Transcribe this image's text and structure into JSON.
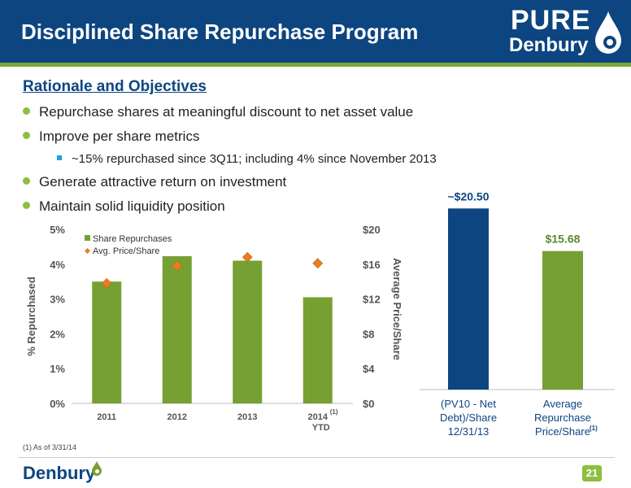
{
  "header": {
    "title": "Disciplined Share Repurchase Program",
    "logo_top": "PURE",
    "logo_bottom": "Denbury",
    "bar_color": "#0d4580",
    "accent_color": "#7aa83a"
  },
  "rationale": {
    "heading": "Rationale and Objectives",
    "bullets": [
      "Repurchase shares at meaningful discount to net asset value",
      "Improve per share metrics",
      "Generate attractive return on investment",
      "Maintain solid liquidity position"
    ],
    "sub_bullet": "~15% repurchased since 3Q11; including 4% since November 2013"
  },
  "chart_data": [
    {
      "type": "bar",
      "categories": [
        "2011",
        "2012",
        "2013",
        "2014"
      ],
      "category_footnote_marker": "(1)",
      "category_sublabel": "YTD",
      "series": [
        {
          "name": "Share Repurchases",
          "kind": "bar",
          "axis": "left",
          "color": "#77a033",
          "values": [
            3.5,
            4.23,
            4.1,
            3.05
          ]
        },
        {
          "name": "Avg. Price/Share",
          "kind": "marker",
          "axis": "right",
          "color": "#e67e22",
          "values": [
            13.8,
            15.8,
            16.8,
            16.1
          ]
        }
      ],
      "ylabel": "% Repurchased",
      "y2label": "Average Price/Share",
      "ylim": [
        0,
        5
      ],
      "y2lim": [
        0,
        20
      ],
      "yticks": [
        "0%",
        "1%",
        "2%",
        "3%",
        "4%",
        "5%"
      ],
      "y2ticks": [
        "$0",
        "$4",
        "$8",
        "$12",
        "$16",
        "$20"
      ],
      "legend": "top-left"
    },
    {
      "type": "bar",
      "categories": [
        [
          "(PV10 - Net",
          "Debt)/Share",
          "12/31/13"
        ],
        [
          "Average",
          "Repurchase",
          "Price/Share"
        ]
      ],
      "category_footnote_marker": "(1)",
      "values": [
        20.5,
        15.68
      ],
      "value_labels": [
        "~$20.50",
        "$15.68"
      ],
      "colors": [
        "#0d4580",
        "#77a033"
      ],
      "label_colors": [
        "#0d4580",
        "#5b8a2a"
      ],
      "ylim": [
        0,
        22
      ]
    }
  ],
  "footnote": "(1)   As of 3/31/14",
  "footer": {
    "logo": "Denbury",
    "page_number": "21"
  }
}
